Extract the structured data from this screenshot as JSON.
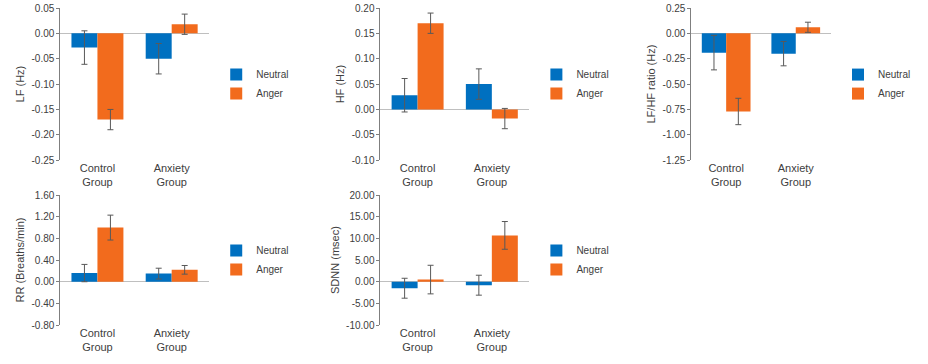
{
  "chart_data": [
    {
      "type": "bar",
      "y_label": "LF (Hz)",
      "categories": [
        "Control Group",
        "Anxiety Group"
      ],
      "series": [
        {
          "name": "Neutral",
          "color": "#0070C0",
          "values": [
            -0.028,
            -0.05
          ],
          "errors": [
            0.033,
            0.03
          ]
        },
        {
          "name": "Anger",
          "color": "#F26B1D",
          "values": [
            -0.17,
            0.018
          ],
          "errors": [
            0.02,
            0.02
          ]
        }
      ],
      "ylim": [
        -0.25,
        0.05
      ],
      "yticks": [
        -0.25,
        {
          "value": -0.2,
          "label": "-0.20"
        },
        -0.15,
        {
          "value": -0.1,
          "label": "-0.10"
        },
        -0.05,
        {
          "value": 0,
          "label": "0.00"
        },
        0.05
      ],
      "grid": false,
      "legend": "right"
    },
    {
      "type": "bar",
      "y_label": "HF (Hz)",
      "categories": [
        "Control Group",
        "Anxiety Group"
      ],
      "series": [
        {
          "name": "Neutral",
          "color": "#0070C0",
          "values": [
            0.028,
            0.05
          ],
          "errors": [
            0.033,
            0.03
          ]
        },
        {
          "name": "Anger",
          "color": "#F26B1D",
          "values": [
            0.17,
            -0.018
          ],
          "errors": [
            0.02,
            0.02
          ]
        }
      ],
      "ylim": [
        -0.1,
        0.2
      ],
      "yticks": [
        {
          "value": -0.1,
          "label": "-0.10"
        },
        -0.05,
        {
          "value": 0,
          "label": "0.00"
        },
        0.05,
        {
          "value": 0.1,
          "label": "0.10"
        },
        0.15,
        {
          "value": 0.2,
          "label": "0.20"
        }
      ],
      "grid": false,
      "legend": "right"
    },
    {
      "type": "bar",
      "y_label": "LF/HF ratio (Hz)",
      "categories": [
        "Control Group",
        "Anxiety Group"
      ],
      "series": [
        {
          "name": "Neutral",
          "color": "#0070C0",
          "values": [
            -0.19,
            -0.2
          ],
          "errors": [
            0.17,
            0.12
          ]
        },
        {
          "name": "Anger",
          "color": "#F26B1D",
          "values": [
            -0.77,
            0.06
          ],
          "errors": [
            0.13,
            0.05
          ]
        }
      ],
      "ylim": [
        -1.25,
        0.25
      ],
      "yticks": [
        -1.25,
        {
          "value": -1,
          "label": "-1.00"
        },
        -0.75,
        {
          "value": -0.5,
          "label": "-0.50"
        },
        -0.25,
        {
          "value": 0,
          "label": "0.00"
        },
        0.25
      ],
      "grid": false,
      "legend": "right"
    },
    {
      "type": "bar",
      "y_label": "RR (Breaths/min)",
      "categories": [
        "Control Group",
        "Anxiety Group"
      ],
      "series": [
        {
          "name": "Neutral",
          "color": "#0070C0",
          "values": [
            0.16,
            0.15
          ],
          "errors": [
            0.16,
            0.1
          ]
        },
        {
          "name": "Anger",
          "color": "#F26B1D",
          "values": [
            1.0,
            0.22
          ],
          "errors": [
            0.23,
            0.08
          ]
        }
      ],
      "ylim": [
        -0.8,
        1.6
      ],
      "yticks": [
        {
          "value": -0.8,
          "label": "-0.80"
        },
        {
          "value": -0.4,
          "label": "-0.40"
        },
        {
          "value": 0,
          "label": "0.00"
        },
        {
          "value": 0.4,
          "label": "0.40"
        },
        {
          "value": 0.8,
          "label": "0.80"
        },
        {
          "value": 1.2,
          "label": "1.20"
        },
        {
          "value": 1.6,
          "label": "1.60"
        }
      ],
      "grid": false,
      "legend": "right"
    },
    {
      "type": "bar",
      "y_label": "SDNN (msec)",
      "categories": [
        "Control Group",
        "Anxiety Group"
      ],
      "series": [
        {
          "name": "Neutral",
          "color": "#0070C0",
          "values": [
            -1.5,
            -0.8
          ],
          "errors": [
            2.3,
            2.3
          ]
        },
        {
          "name": "Anger",
          "color": "#F26B1D",
          "values": [
            0.5,
            10.7
          ],
          "errors": [
            3.3,
            3.2
          ]
        }
      ],
      "ylim": [
        -10,
        20
      ],
      "yticks": [
        {
          "value": -10,
          "label": "-10.00"
        },
        {
          "value": -5,
          "label": "-5.00"
        },
        {
          "value": 0,
          "label": "0.00"
        },
        {
          "value": 5,
          "label": "5.00"
        },
        {
          "value": 10,
          "label": "10.00"
        },
        {
          "value": 15,
          "label": "15.00"
        },
        {
          "value": 20,
          "label": "20.00"
        }
      ],
      "grid": false,
      "legend": "right"
    }
  ]
}
